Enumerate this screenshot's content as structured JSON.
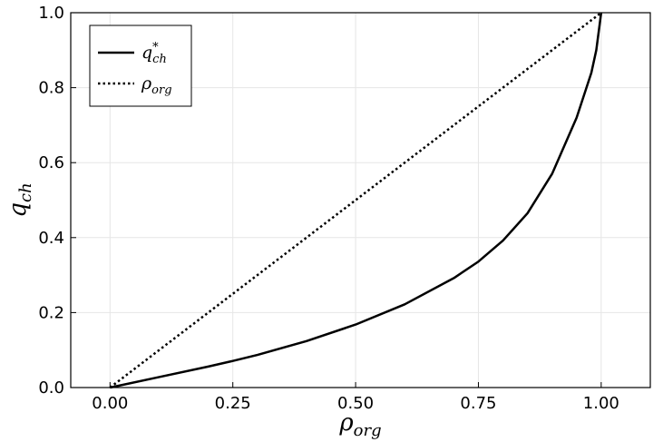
{
  "chart_data": {
    "type": "line",
    "title": "",
    "xlabel": {
      "base": "ρ",
      "sub": "org"
    },
    "ylabel": {
      "base": "q",
      "sub": "ch"
    },
    "xlim": [
      -0.08,
      1.1
    ],
    "ylim": [
      0.0,
      1.0
    ],
    "x_ticks": [
      0.0,
      0.25,
      0.5,
      0.75,
      1.0
    ],
    "x_tick_labels": [
      "0.00",
      "0.25",
      "0.50",
      "0.75",
      "1.00"
    ],
    "y_ticks": [
      0.0,
      0.2,
      0.4,
      0.6,
      0.8,
      1.0
    ],
    "y_tick_labels": [
      "0.0",
      "0.2",
      "0.4",
      "0.6",
      "0.8",
      "1.0"
    ],
    "grid": true,
    "legend_position": "top-left",
    "series": [
      {
        "name": "q*_ch",
        "legend": {
          "base": "q",
          "sup": "*",
          "sub": "ch"
        },
        "style": "solid",
        "color": "#000000",
        "x": [
          0.0,
          0.1,
          0.2,
          0.25,
          0.3,
          0.4,
          0.5,
          0.6,
          0.7,
          0.75,
          0.8,
          0.85,
          0.9,
          0.95,
          0.98,
          0.99,
          0.995,
          1.0
        ],
        "y": [
          0.0,
          0.028,
          0.056,
          0.071,
          0.087,
          0.124,
          0.168,
          0.222,
          0.292,
          0.336,
          0.392,
          0.465,
          0.57,
          0.72,
          0.84,
          0.9,
          0.95,
          1.0
        ]
      },
      {
        "name": "ρ_org",
        "legend": {
          "base": "ρ",
          "sub": "org"
        },
        "style": "dotted",
        "color": "#000000",
        "x": [
          0.0,
          1.0
        ],
        "y": [
          0.0,
          1.0
        ]
      }
    ]
  }
}
